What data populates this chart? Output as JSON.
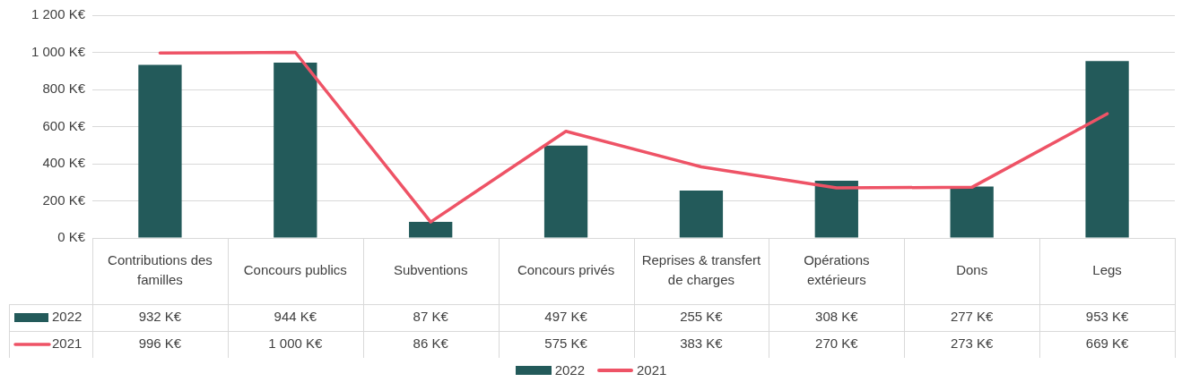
{
  "chart_data": {
    "type": "bar",
    "categories": [
      "Contributions des familles",
      "Concours publics",
      "Subventions",
      "Concours privés",
      "Reprises & transfert de charges",
      "Opérations extérieurs",
      "Dons",
      "Legs"
    ],
    "series": [
      {
        "name": "2022",
        "color": "#235a5a",
        "values": [
          932,
          944,
          87,
          497,
          255,
          308,
          277,
          953
        ],
        "value_labels": [
          "932 K€",
          "944 K€",
          "87 K€",
          "497 K€",
          "255 K€",
          "308 K€",
          "277 K€",
          "953 K€"
        ]
      },
      {
        "name": "2021",
        "type": "line",
        "color": "#ee5366",
        "values": [
          996,
          1000,
          86,
          575,
          383,
          270,
          273,
          669
        ],
        "value_labels": [
          "996 K€",
          "1 000 K€",
          "86 K€",
          "575 K€",
          "383 K€",
          "270 K€",
          "273 K€",
          "669 K€"
        ]
      }
    ],
    "ylim": [
      0,
      1200
    ],
    "yticks": [
      {
        "value": 0,
        "label": "0 K€"
      },
      {
        "value": 200,
        "label": "200 K€"
      },
      {
        "value": 400,
        "label": "400 K€"
      },
      {
        "value": 600,
        "label": "600 K€"
      },
      {
        "value": 800,
        "label": "800 K€"
      },
      {
        "value": 1000,
        "label": "1 000 K€"
      },
      {
        "value": 1200,
        "label": "1 200 K€"
      }
    ],
    "grid": "y",
    "legend": "bottom",
    "marker": "none",
    "line_style": "solid"
  }
}
